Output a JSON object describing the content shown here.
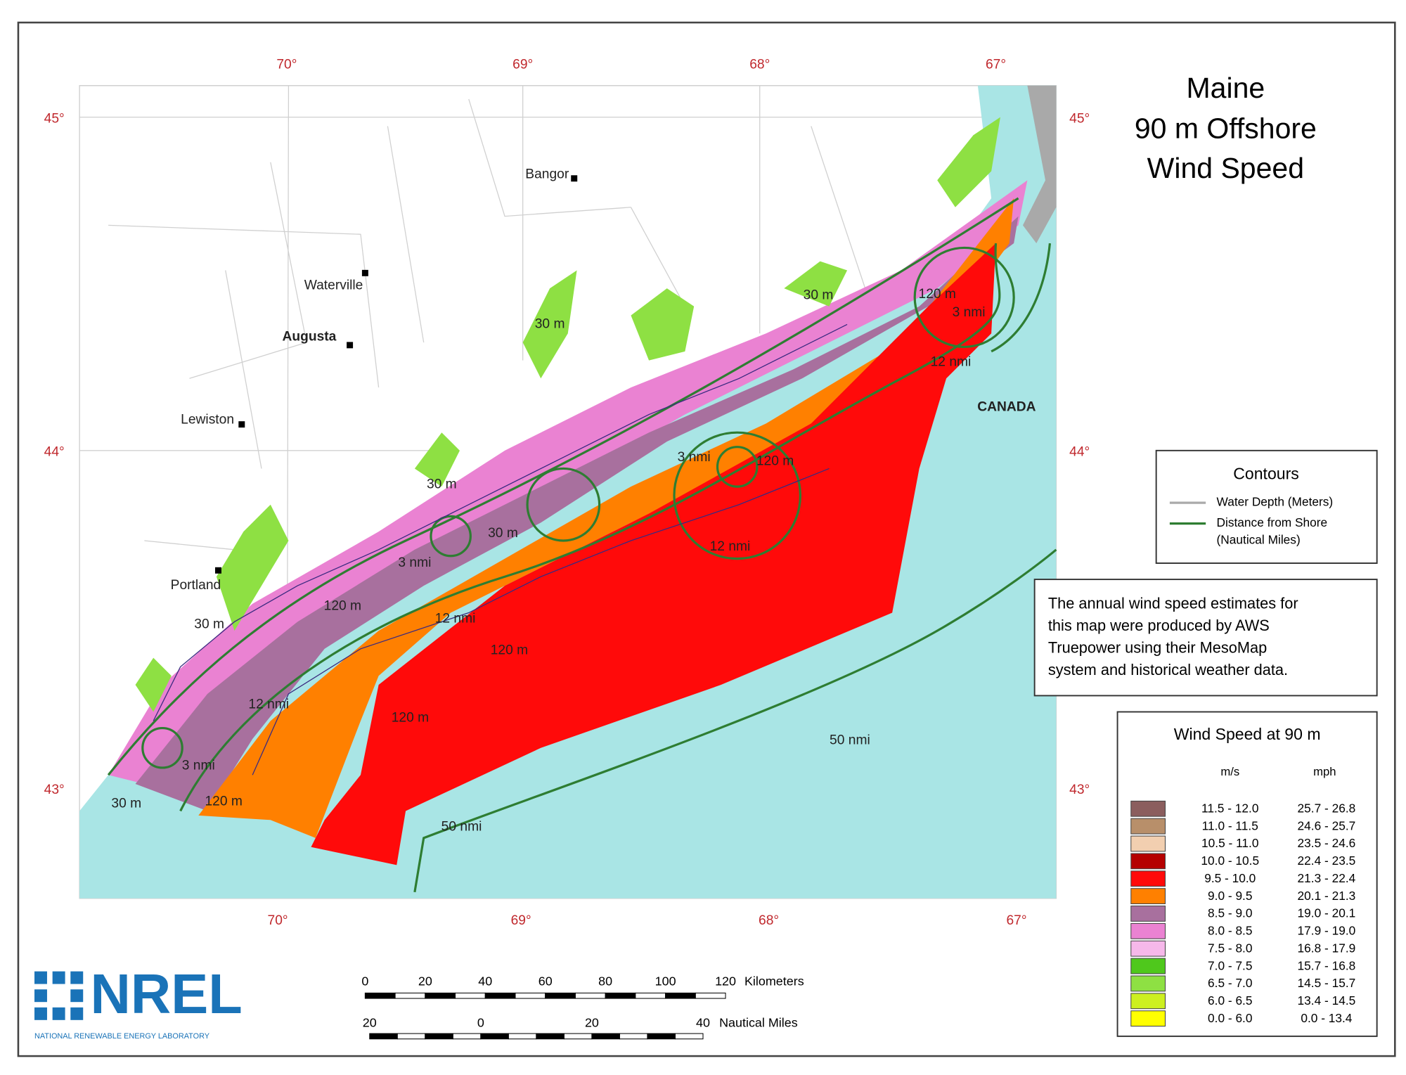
{
  "title": [
    "Maine",
    "90 m Offshore",
    "Wind Speed"
  ],
  "longitude_labels_top": [
    "70°",
    "69°",
    "68°",
    "67°"
  ],
  "longitude_labels_bottom": [
    "70°",
    "69°",
    "68°",
    "67°"
  ],
  "latitude_labels_left": [
    "45°",
    "44°",
    "43°"
  ],
  "latitude_labels_right": [
    "45°",
    "44°",
    "43°"
  ],
  "cities": [
    "Bangor",
    "Waterville",
    "Augusta",
    "Lewiston",
    "Portland"
  ],
  "map_labels": [
    "30 m",
    "30 m",
    "30 m",
    "30 m",
    "30 m",
    "30 m",
    "3 nmi",
    "3 nmi",
    "3 nmi",
    "3 nmi",
    "12 nmi",
    "12 nmi",
    "12 nmi",
    "12 nmi",
    "120 m",
    "120 m",
    "120 m",
    "120 m",
    "120 m",
    "120 m",
    "50 nmi",
    "50 nmi",
    "CANADA"
  ],
  "contours_legend": {
    "title": "Contours",
    "items": [
      {
        "lines": [
          "Water Depth (Meters)"
        ],
        "color": "#aaaaaa"
      },
      {
        "lines": [
          "Distance from Shore",
          "(Nautical Miles)"
        ],
        "color": "#2e7d32"
      }
    ]
  },
  "note": [
    "The annual wind speed estimates for",
    "this map were produced by AWS",
    "Truepower using their MesoMap",
    "system and historical weather data."
  ],
  "wind_legend": {
    "title": "Wind Speed at 90 m",
    "units": [
      "m/s",
      "mph"
    ],
    "rows": [
      {
        "color": "#8b5e5e",
        "ms": "11.5 - 12.0",
        "mph": "25.7 - 26.8"
      },
      {
        "color": "#b88f6a",
        "ms": "11.0 - 11.5",
        "mph": "24.6 - 25.7"
      },
      {
        "color": "#f2cfb0",
        "ms": "10.5 - 11.0",
        "mph": "23.5 - 24.6"
      },
      {
        "color": "#b50000",
        "ms": "10.0 - 10.5",
        "mph": "22.4 - 23.5"
      },
      {
        "color": "#ff0a0a",
        "ms": "9.5 - 10.0",
        "mph": "21.3 - 22.4"
      },
      {
        "color": "#ff8000",
        "ms": "9.0 - 9.5",
        "mph": "20.1 - 21.3"
      },
      {
        "color": "#a8709e",
        "ms": "8.5 - 9.0",
        "mph": "19.0 - 20.1"
      },
      {
        "color": "#ea82d2",
        "ms": "8.0 - 8.5",
        "mph": "17.9 - 19.0"
      },
      {
        "color": "#f6b8ea",
        "ms": "7.5 - 8.0",
        "mph": "16.8 - 17.9"
      },
      {
        "color": "#4fc81c",
        "ms": "7.0 - 7.5",
        "mph": "15.7 - 16.8"
      },
      {
        "color": "#8ee043",
        "ms": "6.5 - 7.0",
        "mph": "14.5 - 15.7"
      },
      {
        "color": "#cdf020",
        "ms": "6.0 - 6.5",
        "mph": "13.4 - 14.5"
      },
      {
        "color": "#ffff00",
        "ms": "0.0 - 6.0",
        "mph": "0.0 - 13.4"
      }
    ]
  },
  "scale_km": {
    "ticks": [
      "0",
      "20",
      "40",
      "60",
      "80",
      "100",
      "120"
    ],
    "unit": "Kilometers"
  },
  "scale_nm": {
    "ticks": [
      "20",
      "0",
      "20",
      "40"
    ],
    "unit": "Nautical Miles"
  },
  "logo": {
    "name": "NREL",
    "subtitle": "NATIONAL RENEWABLE ENERGY LABORATORY"
  }
}
